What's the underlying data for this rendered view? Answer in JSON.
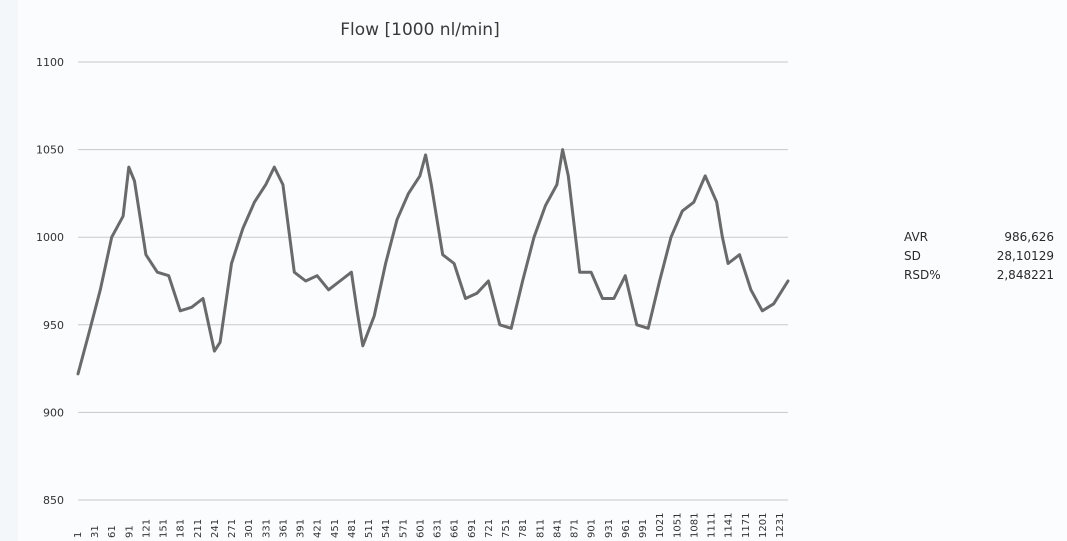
{
  "chart_data": {
    "type": "line",
    "title": "Flow [1000 nl/min]",
    "xlabel": "",
    "ylabel": "",
    "ylim": [
      850,
      1100
    ],
    "yticks": [
      850,
      900,
      950,
      1000,
      1050,
      1100
    ],
    "xticks": [
      1,
      31,
      61,
      91,
      121,
      151,
      181,
      211,
      241,
      271,
      301,
      331,
      361,
      391,
      421,
      451,
      481,
      511,
      541,
      571,
      601,
      631,
      661,
      691,
      721,
      751,
      781,
      811,
      841,
      871,
      901,
      931,
      961,
      991,
      1021,
      1051,
      1081,
      1111,
      1141,
      1171,
      1201,
      1231
    ],
    "xlim": [
      1,
      1245
    ],
    "grid": true,
    "series_color": "#6a6a6a",
    "series": [
      {
        "x": [
          1,
          20,
          40,
          60,
          80,
          90,
          100,
          120,
          140,
          160,
          180,
          200,
          220,
          240,
          250,
          270,
          290,
          310,
          330,
          345,
          360,
          380,
          400,
          420,
          440,
          460,
          480,
          490,
          500,
          520,
          540,
          560,
          580,
          600,
          610,
          620,
          640,
          660,
          680,
          700,
          720,
          740,
          760,
          780,
          800,
          820,
          840,
          850,
          860,
          880,
          900,
          920,
          940,
          960,
          980,
          1000,
          1020,
          1040,
          1060,
          1080,
          1100,
          1120,
          1130,
          1140,
          1160,
          1180,
          1200,
          1220,
          1245
        ],
        "y": [
          922,
          945,
          970,
          1000,
          1012,
          1040,
          1032,
          990,
          980,
          978,
          958,
          960,
          965,
          935,
          940,
          985,
          1005,
          1020,
          1030,
          1040,
          1030,
          980,
          975,
          978,
          970,
          975,
          980,
          958,
          938,
          955,
          985,
          1010,
          1025,
          1035,
          1047,
          1030,
          990,
          985,
          965,
          968,
          975,
          950,
          948,
          975,
          1000,
          1018,
          1030,
          1050,
          1035,
          980,
          980,
          965,
          965,
          978,
          950,
          948,
          975,
          1000,
          1015,
          1020,
          1035,
          1020,
          1000,
          985,
          990,
          970,
          958,
          962,
          975
        ]
      }
    ]
  },
  "stats": [
    {
      "label": "AVR",
      "value": "986,626"
    },
    {
      "label": "SD",
      "value": "28,10129"
    },
    {
      "label": "RSD%",
      "value": "2,848221"
    }
  ]
}
